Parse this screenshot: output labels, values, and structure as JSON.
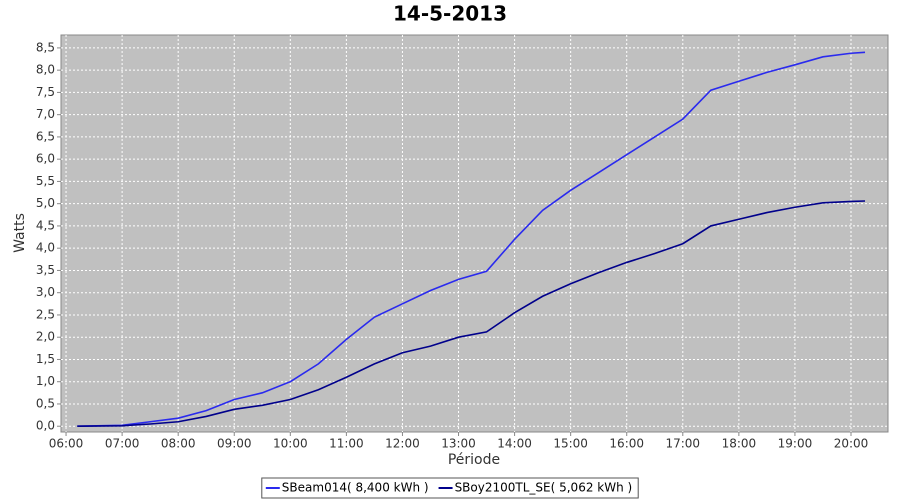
{
  "chart_data": {
    "type": "line",
    "title": "14-5-2013",
    "xlabel": "Période",
    "ylabel": "Watts",
    "xlim": [
      5.91,
      20.66
    ],
    "ylim": [
      -0.13,
      8.79
    ],
    "xticks": [
      {
        "value": 6,
        "label": "06:00"
      },
      {
        "value": 7,
        "label": "07:00"
      },
      {
        "value": 8,
        "label": "08:00"
      },
      {
        "value": 9,
        "label": "09:00"
      },
      {
        "value": 10,
        "label": "10:00"
      },
      {
        "value": 11,
        "label": "11:00"
      },
      {
        "value": 12,
        "label": "12:00"
      },
      {
        "value": 13,
        "label": "13:00"
      },
      {
        "value": 14,
        "label": "14:00"
      },
      {
        "value": 15,
        "label": "15:00"
      },
      {
        "value": 16,
        "label": "16:00"
      },
      {
        "value": 17,
        "label": "17:00"
      },
      {
        "value": 18,
        "label": "18:00"
      },
      {
        "value": 19,
        "label": "19:00"
      },
      {
        "value": 20,
        "label": "20:00"
      }
    ],
    "yticks": [
      {
        "value": 0,
        "label": "0,0"
      },
      {
        "value": 0.5,
        "label": "0,5"
      },
      {
        "value": 1,
        "label": "1,0"
      },
      {
        "value": 1.5,
        "label": "1,5"
      },
      {
        "value": 2,
        "label": "2,0"
      },
      {
        "value": 2.5,
        "label": "2,5"
      },
      {
        "value": 3,
        "label": "3,0"
      },
      {
        "value": 3.5,
        "label": "3,5"
      },
      {
        "value": 4,
        "label": "4,0"
      },
      {
        "value": 4.5,
        "label": "4,5"
      },
      {
        "value": 5,
        "label": "5,0"
      },
      {
        "value": 5.5,
        "label": "5,5"
      },
      {
        "value": 6,
        "label": "6,0"
      },
      {
        "value": 6.5,
        "label": "6,5"
      },
      {
        "value": 7,
        "label": "7,0"
      },
      {
        "value": 7.5,
        "label": "7,5"
      },
      {
        "value": 8,
        "label": "8,0"
      },
      {
        "value": 8.5,
        "label": "8,5"
      }
    ],
    "grid": true,
    "legend": "bottom",
    "x": [
      6.2,
      7.0,
      7.5,
      8.0,
      8.5,
      9.0,
      9.5,
      10.0,
      10.5,
      11.0,
      11.5,
      12.0,
      12.5,
      13.0,
      13.5,
      14.0,
      14.5,
      15.0,
      15.5,
      16.0,
      16.5,
      17.0,
      17.5,
      18.0,
      18.5,
      19.0,
      19.5,
      20.0,
      20.25
    ],
    "series": [
      {
        "name": "SBeam014( 8,400 kWh )",
        "color": "#2a2aee",
        "values": [
          0,
          0.02,
          0.1,
          0.18,
          0.35,
          0.6,
          0.75,
          1.0,
          1.4,
          1.95,
          2.45,
          2.75,
          3.05,
          3.3,
          3.48,
          4.2,
          4.85,
          5.3,
          5.7,
          6.1,
          6.5,
          6.9,
          7.55,
          7.75,
          7.95,
          8.12,
          8.3,
          8.38,
          8.4
        ]
      },
      {
        "name": "SBoy2100TL_SE( 5,062 kWh )",
        "color": "#00008b",
        "values": [
          0,
          0.01,
          0.05,
          0.1,
          0.22,
          0.38,
          0.47,
          0.6,
          0.82,
          1.1,
          1.4,
          1.65,
          1.8,
          2.0,
          2.12,
          2.55,
          2.92,
          3.2,
          3.45,
          3.68,
          3.88,
          4.1,
          4.5,
          4.65,
          4.8,
          4.92,
          5.02,
          5.05,
          5.06
        ]
      }
    ]
  }
}
